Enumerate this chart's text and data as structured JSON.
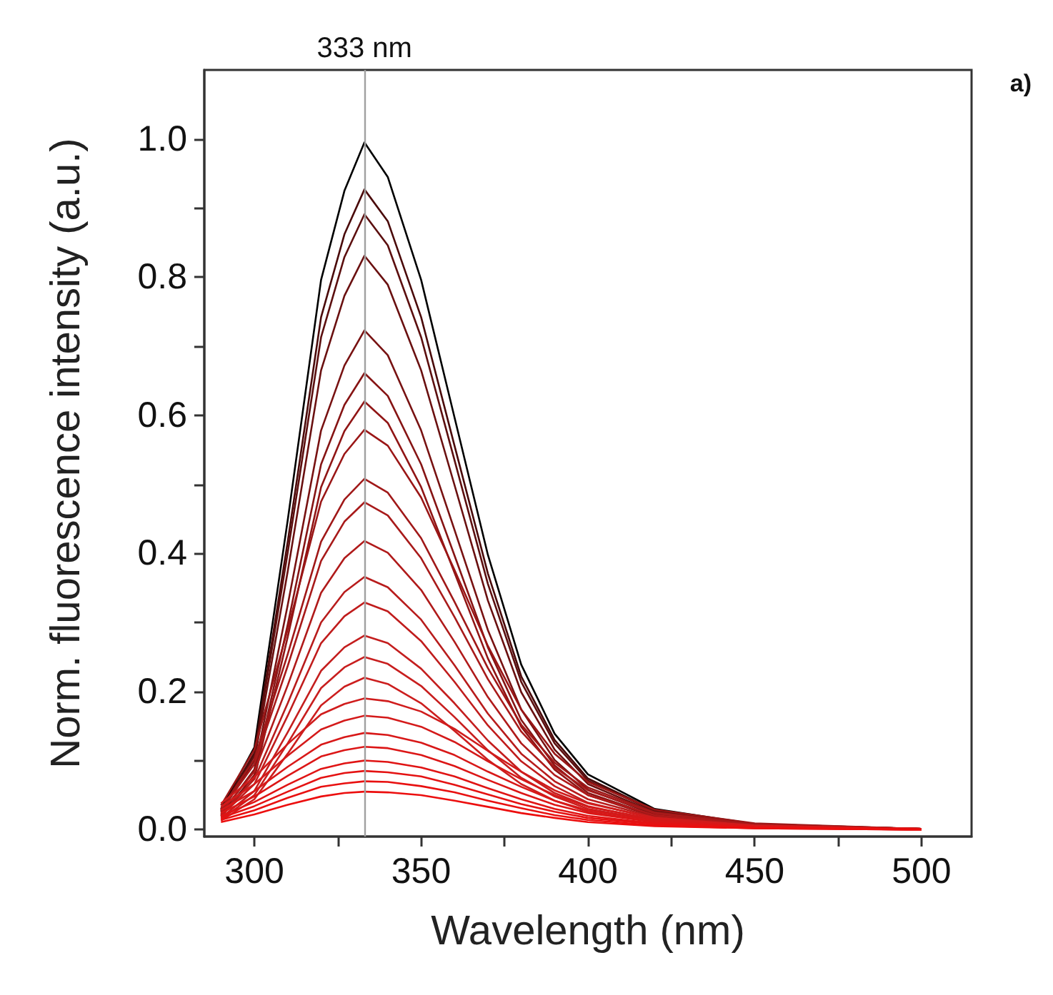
{
  "chart_data": {
    "type": "line",
    "xlabel": "Wavelength (nm)",
    "ylabel": "Norm. fluorescence intensity (a.u.)",
    "annotations": [
      "a)"
    ],
    "x": [
      290,
      300,
      310,
      320,
      327,
      333,
      340,
      350,
      360,
      370,
      380,
      390,
      400,
      420,
      450,
      500
    ],
    "xlim": [
      285,
      515
    ],
    "ylim": [
      -0.01,
      1.1
    ],
    "xticks": [
      300,
      {
        "value": 325,
        "label": null
      },
      350,
      {
        "value": 375,
        "label": null
      },
      400,
      {
        "value": 425,
        "label": null
      },
      450,
      {
        "value": 475,
        "label": null
      },
      500
    ],
    "yticks": [
      {
        "value": 0,
        "label": "0.0"
      },
      {
        "value": 0.1,
        "label": null
      },
      {
        "value": 0.2,
        "label": "0.2"
      },
      {
        "value": 0.3,
        "label": null
      },
      {
        "value": 0.4,
        "label": "0.4"
      },
      {
        "value": 0.5,
        "label": null
      },
      {
        "value": 0.6,
        "label": "0.6"
      },
      {
        "value": 0.7,
        "label": null
      },
      {
        "value": 0.8,
        "label": "0.8"
      },
      {
        "value": 0.9,
        "label": null
      },
      {
        "value": 1.0,
        "label": "1.0"
      }
    ],
    "grid": false,
    "marker": "none",
    "line_style": "solid",
    "ref_lines": [
      {
        "axis": "x",
        "value": 333,
        "label": "333 nm",
        "color": "#a0a0a0"
      }
    ],
    "series": [
      {
        "color": "#000000",
        "values": [
          0.03,
          0.119,
          0.448,
          0.796,
          0.925,
          0.995,
          0.945,
          0.796,
          0.597,
          0.398,
          0.239,
          0.139,
          0.08,
          0.03,
          0.008,
          0.001
        ]
      },
      {
        "color": "#4a0a0a",
        "values": [
          0.028,
          0.111,
          0.417,
          0.742,
          0.862,
          0.927,
          0.881,
          0.742,
          0.556,
          0.371,
          0.222,
          0.13,
          0.074,
          0.028,
          0.007,
          0.001
        ]
      },
      {
        "color": "#5c0f0f",
        "values": [
          0.027,
          0.107,
          0.401,
          0.713,
          0.829,
          0.891,
          0.846,
          0.713,
          0.535,
          0.356,
          0.214,
          0.125,
          0.071,
          0.027,
          0.007,
          0.001
        ]
      },
      {
        "color": "#6a1010",
        "values": [
          0.025,
          0.1,
          0.374,
          0.665,
          0.773,
          0.831,
          0.789,
          0.665,
          0.499,
          0.332,
          0.199,
          0.116,
          0.066,
          0.025,
          0.007,
          0.001
        ]
      },
      {
        "color": "#781212",
        "values": [
          0.022,
          0.087,
          0.325,
          0.578,
          0.672,
          0.723,
          0.687,
          0.578,
          0.434,
          0.289,
          0.174,
          0.101,
          0.058,
          0.022,
          0.006,
          0.001
        ]
      },
      {
        "color": "#861414",
        "values": [
          0.02,
          0.079,
          0.297,
          0.529,
          0.615,
          0.661,
          0.628,
          0.529,
          0.397,
          0.264,
          0.159,
          0.093,
          0.053,
          0.02,
          0.005,
          0.001
        ]
      },
      {
        "color": "#901515",
        "values": [
          0.019,
          0.074,
          0.279,
          0.496,
          0.577,
          0.62,
          0.589,
          0.496,
          0.372,
          0.248,
          0.149,
          0.087,
          0.05,
          0.019,
          0.005,
          0.001
        ]
      },
      {
        "color": "#9a1616",
        "values": [
          0.035,
          0.116,
          0.29,
          0.475,
          0.544,
          0.579,
          0.556,
          0.481,
          0.376,
          0.266,
          0.174,
          0.11,
          0.069,
          0.029,
          0.009,
          0.001
        ]
      },
      {
        "color": "#a01818",
        "values": [
          0.03,
          0.102,
          0.254,
          0.417,
          0.478,
          0.508,
          0.488,
          0.422,
          0.33,
          0.234,
          0.152,
          0.097,
          0.061,
          0.025,
          0.008,
          0.001
        ]
      },
      {
        "color": "#a81a1a",
        "values": [
          0.028,
          0.095,
          0.237,
          0.389,
          0.446,
          0.474,
          0.455,
          0.393,
          0.308,
          0.218,
          0.142,
          0.09,
          0.057,
          0.024,
          0.007,
          0.001
        ]
      },
      {
        "color": "#b01a1a",
        "values": [
          0.025,
          0.084,
          0.209,
          0.343,
          0.393,
          0.418,
          0.401,
          0.347,
          0.272,
          0.192,
          0.125,
          0.079,
          0.05,
          0.021,
          0.006,
          0.001
        ]
      },
      {
        "color": "#b81c1c",
        "values": [
          0.022,
          0.073,
          0.183,
          0.3,
          0.344,
          0.366,
          0.351,
          0.304,
          0.238,
          0.168,
          0.11,
          0.07,
          0.044,
          0.018,
          0.005,
          0.001
        ]
      },
      {
        "color": "#c01c1c",
        "values": [
          0.02,
          0.066,
          0.165,
          0.27,
          0.309,
          0.329,
          0.316,
          0.273,
          0.214,
          0.151,
          0.099,
          0.063,
          0.039,
          0.016,
          0.005,
          0.001
        ]
      },
      {
        "color": "#c41e1e",
        "values": [
          0.017,
          0.056,
          0.141,
          0.23,
          0.264,
          0.281,
          0.27,
          0.233,
          0.183,
          0.129,
          0.084,
          0.053,
          0.034,
          0.014,
          0.004,
          0.001
        ]
      },
      {
        "color": "#c81e1e",
        "values": [
          0.015,
          0.05,
          0.125,
          0.205,
          0.235,
          0.25,
          0.24,
          0.208,
          0.163,
          0.115,
          0.075,
          0.048,
          0.03,
          0.013,
          0.004,
          0.001
        ]
      },
      {
        "color": "#cc1e1e",
        "values": [
          0.013,
          0.044,
          0.11,
          0.18,
          0.207,
          0.22,
          0.211,
          0.183,
          0.143,
          0.101,
          0.066,
          0.042,
          0.026,
          0.011,
          0.003,
          0
        ]
      },
      {
        "color": "#d01c1c",
        "values": [
          0.038,
          0.076,
          0.124,
          0.167,
          0.182,
          0.19,
          0.186,
          0.171,
          0.146,
          0.114,
          0.084,
          0.057,
          0.038,
          0.017,
          0.006,
          0.001
        ]
      },
      {
        "color": "#d41a1a",
        "values": [
          0.033,
          0.066,
          0.107,
          0.145,
          0.158,
          0.165,
          0.162,
          0.149,
          0.127,
          0.099,
          0.073,
          0.05,
          0.033,
          0.015,
          0.005,
          0.001
        ]
      },
      {
        "color": "#d81818",
        "values": [
          0.028,
          0.056,
          0.091,
          0.123,
          0.134,
          0.14,
          0.137,
          0.126,
          0.108,
          0.084,
          0.062,
          0.042,
          0.028,
          0.013,
          0.004,
          0.001
        ]
      },
      {
        "color": "#dc1616",
        "values": [
          0.024,
          0.048,
          0.078,
          0.106,
          0.115,
          0.12,
          0.118,
          0.108,
          0.092,
          0.072,
          0.053,
          0.036,
          0.024,
          0.011,
          0.004,
          0.001
        ]
      },
      {
        "color": "#e01414",
        "values": [
          0.02,
          0.04,
          0.065,
          0.088,
          0.096,
          0.1,
          0.098,
          0.09,
          0.077,
          0.06,
          0.044,
          0.03,
          0.02,
          0.009,
          0.003,
          0.001
        ]
      },
      {
        "color": "#e41212",
        "values": [
          0.017,
          0.034,
          0.055,
          0.075,
          0.082,
          0.085,
          0.083,
          0.077,
          0.065,
          0.051,
          0.037,
          0.026,
          0.017,
          0.008,
          0.003,
          0
        ]
      },
      {
        "color": "#e81010",
        "values": [
          0.014,
          0.028,
          0.046,
          0.062,
          0.067,
          0.07,
          0.069,
          0.063,
          0.054,
          0.042,
          0.031,
          0.021,
          0.014,
          0.006,
          0.002,
          0
        ]
      },
      {
        "color": "#ec0e0e",
        "values": [
          0.011,
          0.022,
          0.036,
          0.048,
          0.053,
          0.055,
          0.054,
          0.05,
          0.042,
          0.033,
          0.024,
          0.017,
          0.011,
          0.005,
          0.002,
          0
        ]
      }
    ]
  }
}
